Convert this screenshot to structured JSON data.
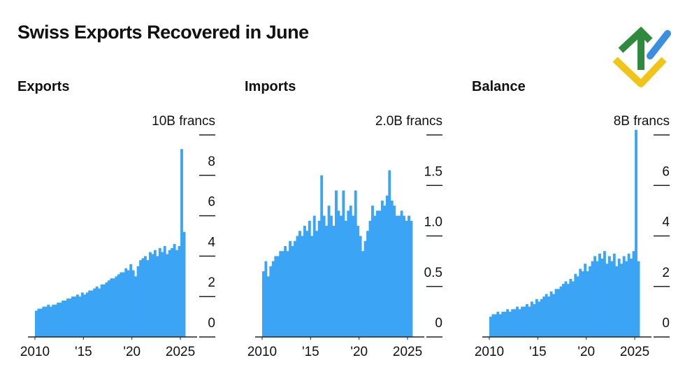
{
  "title": "Swiss Exports Recovered in June",
  "chart_data": [
    {
      "type": "bar",
      "title": "Exports",
      "color": "#3ba4f5",
      "x": [
        2010,
        2010.25,
        2010.5,
        2010.75,
        2011,
        2011.25,
        2011.5,
        2011.75,
        2012,
        2012.25,
        2012.5,
        2012.75,
        2013,
        2013.25,
        2013.5,
        2013.75,
        2014,
        2014.25,
        2014.5,
        2014.75,
        2015,
        2015.25,
        2015.5,
        2015.75,
        2016,
        2016.25,
        2016.5,
        2016.75,
        2017,
        2017.25,
        2017.5,
        2017.75,
        2018,
        2018.25,
        2018.5,
        2018.75,
        2019,
        2019.25,
        2019.5,
        2019.75,
        2020,
        2020.25,
        2020.5,
        2020.75,
        2021,
        2021.25,
        2021.5,
        2021.75,
        2022,
        2022.25,
        2022.5,
        2022.75,
        2023,
        2023.25,
        2023.5,
        2023.75,
        2024,
        2024.25,
        2024.5,
        2024.75,
        2025,
        2025.25
      ],
      "values": [
        1.3,
        1.4,
        1.4,
        1.5,
        1.5,
        1.6,
        1.5,
        1.6,
        1.6,
        1.7,
        1.7,
        1.8,
        1.8,
        1.9,
        1.9,
        2.0,
        2.0,
        2.1,
        2.0,
        2.2,
        2.1,
        2.2,
        2.3,
        2.3,
        2.4,
        2.5,
        2.4,
        2.6,
        2.6,
        2.7,
        2.8,
        2.9,
        2.9,
        3.0,
        3.1,
        3.2,
        3.2,
        3.4,
        3.3,
        3.6,
        3.3,
        3.0,
        3.5,
        3.8,
        3.9,
        4.0,
        3.8,
        4.2,
        4.1,
        4.3,
        4.0,
        4.4,
        4.2,
        4.5,
        4.1,
        4.3,
        4.4,
        4.6,
        4.3,
        4.5,
        9.3,
        5.2
      ],
      "xlim": [
        2010,
        2025.5
      ],
      "xticks": [
        2010,
        {
          "value": 2015,
          "label": "'15"
        },
        {
          "value": 2020,
          "label": "'20"
        },
        2025
      ],
      "ylim": [
        0,
        10
      ],
      "yticks": [
        0,
        2,
        4,
        6,
        8,
        {
          "value": 10,
          "label": "10B francs"
        }
      ]
    },
    {
      "type": "bar",
      "title": "Imports",
      "color": "#3ba4f5",
      "x": [
        2010,
        2010.25,
        2010.5,
        2010.75,
        2011,
        2011.25,
        2011.5,
        2011.75,
        2012,
        2012.25,
        2012.5,
        2012.75,
        2013,
        2013.25,
        2013.5,
        2013.75,
        2014,
        2014.25,
        2014.5,
        2014.75,
        2015,
        2015.25,
        2015.5,
        2015.75,
        2016,
        2016.25,
        2016.5,
        2016.75,
        2017,
        2017.25,
        2017.5,
        2017.75,
        2018,
        2018.25,
        2018.5,
        2018.75,
        2019,
        2019.25,
        2019.5,
        2019.75,
        2020,
        2020.25,
        2020.5,
        2020.75,
        2021,
        2021.25,
        2021.5,
        2021.75,
        2022,
        2022.25,
        2022.5,
        2022.75,
        2023,
        2023.25,
        2023.5,
        2023.75,
        2024,
        2024.25,
        2024.5,
        2024.75,
        2025,
        2025.25
      ],
      "values": [
        0.65,
        0.75,
        0.6,
        0.7,
        0.75,
        0.8,
        0.8,
        0.85,
        0.85,
        0.9,
        0.85,
        0.95,
        0.9,
        0.95,
        1.0,
        1.05,
        1.0,
        1.1,
        1.05,
        1.15,
        1.0,
        1.2,
        1.05,
        1.15,
        1.6,
        1.2,
        1.1,
        1.3,
        1.2,
        1.1,
        1.45,
        1.25,
        1.2,
        1.45,
        1.15,
        1.25,
        1.3,
        1.2,
        1.45,
        1.1,
        1.0,
        0.85,
        0.95,
        1.05,
        1.15,
        1.3,
        1.2,
        1.25,
        1.25,
        1.35,
        1.3,
        1.4,
        1.65,
        1.35,
        1.3,
        1.2,
        1.2,
        1.25,
        1.2,
        1.15,
        1.2,
        1.15
      ],
      "xlim": [
        2010,
        2025.5
      ],
      "xticks": [
        2010,
        {
          "value": 2015,
          "label": "'15"
        },
        {
          "value": 2020,
          "label": "'20"
        },
        2025
      ],
      "ylim": [
        0,
        2
      ],
      "yticks": [
        0,
        0.5,
        {
          "value": 1,
          "label": "1.0"
        },
        1.5,
        {
          "value": 2,
          "label": "2.0B francs"
        }
      ]
    },
    {
      "type": "bar",
      "title": "Balance",
      "color": "#3ba4f5",
      "x": [
        2010,
        2010.25,
        2010.5,
        2010.75,
        2011,
        2011.25,
        2011.5,
        2011.75,
        2012,
        2012.25,
        2012.5,
        2012.75,
        2013,
        2013.25,
        2013.5,
        2013.75,
        2014,
        2014.25,
        2014.5,
        2014.75,
        2015,
        2015.25,
        2015.5,
        2015.75,
        2016,
        2016.25,
        2016.5,
        2016.75,
        2017,
        2017.25,
        2017.5,
        2017.75,
        2018,
        2018.25,
        2018.5,
        2018.75,
        2019,
        2019.25,
        2019.5,
        2019.75,
        2020,
        2020.25,
        2020.5,
        2020.75,
        2021,
        2021.25,
        2021.5,
        2021.75,
        2022,
        2022.25,
        2022.5,
        2022.75,
        2023,
        2023.25,
        2023.5,
        2023.75,
        2024,
        2024.25,
        2024.5,
        2024.75,
        2025,
        2025.25
      ],
      "values": [
        0.8,
        0.9,
        0.9,
        1.0,
        0.9,
        1.0,
        1.0,
        1.1,
        1.0,
        1.1,
        1.1,
        1.2,
        1.1,
        1.2,
        1.2,
        1.3,
        1.2,
        1.4,
        1.3,
        1.5,
        1.4,
        1.5,
        1.6,
        1.7,
        1.6,
        1.8,
        1.7,
        1.9,
        1.9,
        2.0,
        2.1,
        2.2,
        2.1,
        2.3,
        2.2,
        2.5,
        2.4,
        2.7,
        2.6,
        2.9,
        2.6,
        2.8,
        3.0,
        3.2,
        3.0,
        3.3,
        3.1,
        3.4,
        2.9,
        3.2,
        3.0,
        3.3,
        2.8,
        3.1,
        2.9,
        3.2,
        3.0,
        3.3,
        3.1,
        3.4,
        8.2,
        3.0
      ],
      "xlim": [
        2010,
        2025.5
      ],
      "xticks": [
        2010,
        {
          "value": 2015,
          "label": "'15"
        },
        {
          "value": 2020,
          "label": "'20"
        },
        2025
      ],
      "ylim": [
        0,
        8
      ],
      "yticks": [
        0,
        2,
        4,
        6,
        {
          "value": 8,
          "label": "8B francs"
        }
      ]
    }
  ]
}
